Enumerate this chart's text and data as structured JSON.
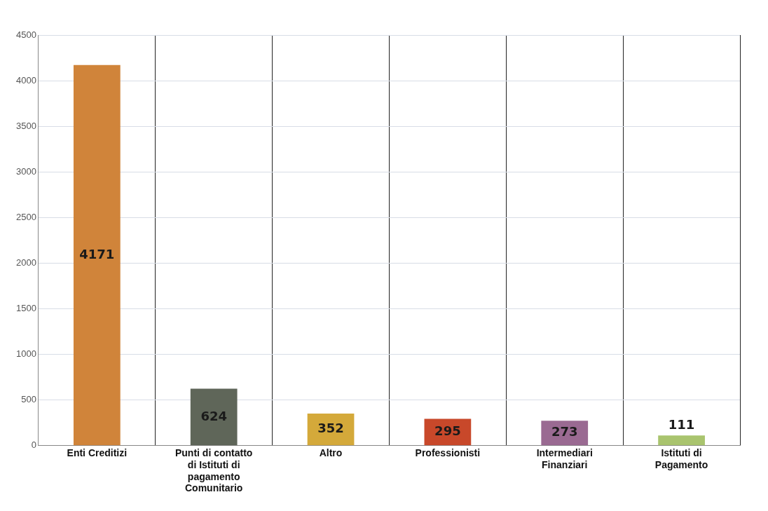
{
  "chart_data": {
    "type": "bar",
    "categories": [
      "Enti Creditizi",
      "Punti di contatto di Istituti di pagamento Comunitario",
      "Altro",
      "Professionisti",
      "Intermediari Finanziari",
      "Istituti di Pagamento"
    ],
    "values": [
      4171,
      624,
      352,
      295,
      273,
      111
    ],
    "colors": [
      "#d0843a",
      "#5f6659",
      "#d4a93a",
      "#c8482a",
      "#9a6a92",
      "#a9c46e"
    ],
    "ylim": [
      0,
      4500
    ],
    "yticks": [
      0,
      500,
      1000,
      1500,
      2000,
      2500,
      3000,
      3500,
      4000,
      4500
    ],
    "grid": true,
    "data_labels": true
  }
}
